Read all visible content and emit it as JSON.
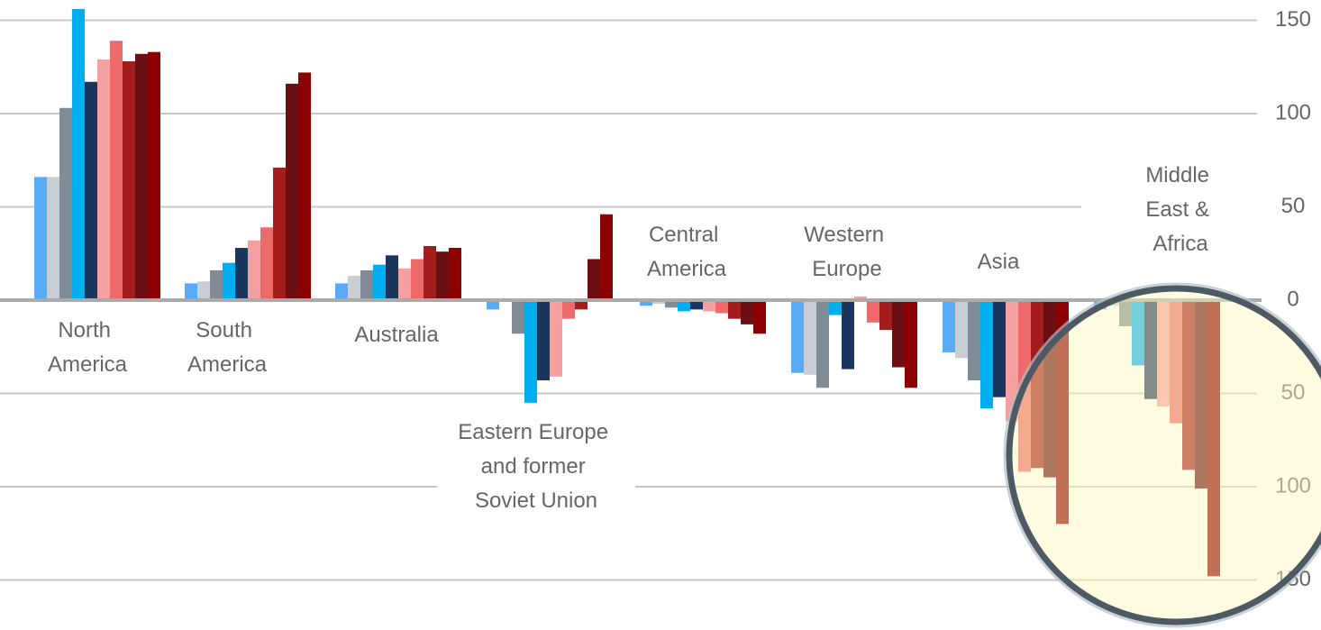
{
  "chart_data": {
    "type": "bar",
    "categories": [
      "North America",
      "South America",
      "Australia",
      "Eastern Europe and former Soviet Union",
      "Central America",
      "Western Europe",
      "Asia",
      "Middle East & Africa"
    ],
    "series": [
      {
        "color": "#5aabf5",
        "values": [
          66,
          9,
          9,
          -5,
          -3,
          -39,
          -28,
          -5
        ]
      },
      {
        "color": "#c9ced4",
        "values": [
          66,
          10,
          13,
          0,
          -2,
          -40,
          -31,
          -3
        ]
      },
      {
        "color": "#7f8c95",
        "values": [
          103,
          16,
          16,
          -18,
          -4,
          -47,
          -43,
          -14
        ]
      },
      {
        "color": "#00aeef",
        "values": [
          156,
          20,
          19,
          -55,
          -6,
          -8,
          -58,
          -35
        ]
      },
      {
        "color": "#1b365d",
        "values": [
          117,
          28,
          24,
          -43,
          -5,
          -37,
          -52,
          -53
        ]
      },
      {
        "color": "#f4a0a0",
        "values": [
          129,
          32,
          17,
          -41,
          -6,
          2,
          -65,
          -57
        ]
      },
      {
        "color": "#ec6a6a",
        "values": [
          139,
          39,
          22,
          -10,
          -7,
          -12,
          -92,
          -66
        ]
      },
      {
        "color": "#a31d1d",
        "values": [
          128,
          71,
          29,
          -5,
          -10,
          -16,
          -90,
          -91
        ]
      },
      {
        "color": "#6b0f13",
        "values": [
          132,
          116,
          26,
          22,
          -13,
          -36,
          -95,
          -101
        ]
      },
      {
        "color": "#8b0000",
        "values": [
          133,
          122,
          28,
          46,
          -18,
          -47,
          -120,
          -148
        ]
      }
    ],
    "ylim": [
      -160,
      155
    ],
    "yticks": [
      {
        "value": -150,
        "label": "150"
      },
      {
        "value": -100,
        "label": "100"
      },
      {
        "value": -50,
        "label": "50"
      },
      0,
      50,
      100,
      150
    ],
    "grid": true
  }
}
